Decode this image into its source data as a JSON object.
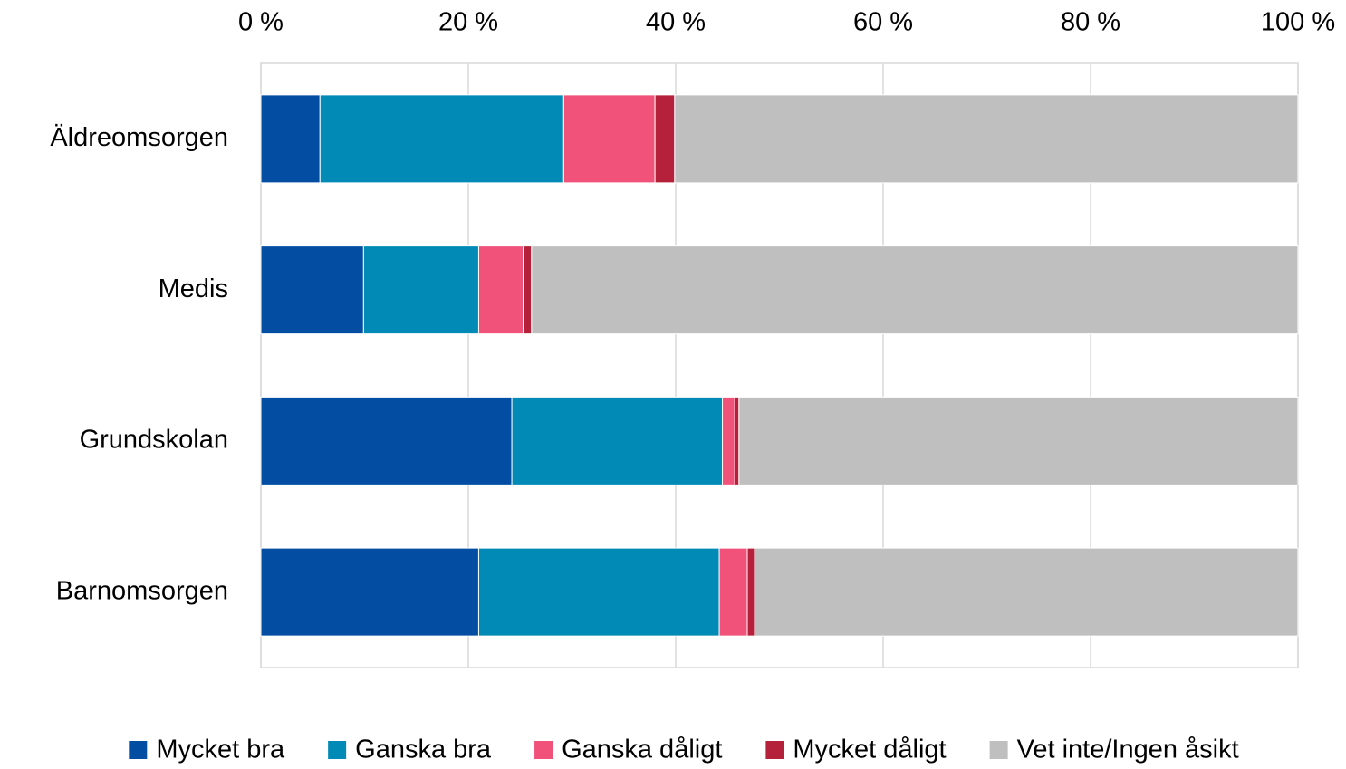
{
  "chart_data": {
    "type": "stacked-bar-horizontal",
    "categories": [
      "Äldreomsorgen",
      "Medis",
      "Grundskolan",
      "Barnomsorgen"
    ],
    "series": [
      {
        "name": "Mycket bra",
        "color": "#034ea2",
        "values": [
          5.7,
          9.9,
          24.2,
          21.0
        ]
      },
      {
        "name": "Ganska bra",
        "color": "#008ab5",
        "values": [
          23.5,
          11.1,
          20.3,
          23.2
        ]
      },
      {
        "name": "Ganska dåligt",
        "color": "#f0527a",
        "values": [
          8.8,
          4.3,
          1.2,
          2.7
        ]
      },
      {
        "name": "Mycket dåligt",
        "color": "#b5203a",
        "values": [
          1.9,
          0.8,
          0.4,
          0.7
        ]
      },
      {
        "name": "Vet inte/Ingen åsikt",
        "color": "#bfbfbf",
        "values": [
          60.1,
          73.9,
          53.9,
          52.4
        ]
      }
    ],
    "xlim": [
      0,
      100
    ],
    "xticks": [
      {
        "value": 0,
        "label": "0 %"
      },
      {
        "value": 20,
        "label": "20 %"
      },
      {
        "value": 40,
        "label": "40 %"
      },
      {
        "value": 60,
        "label": "60 %"
      },
      {
        "value": 80,
        "label": "80 %"
      },
      {
        "value": 100,
        "label": "100 %"
      }
    ],
    "grid": true,
    "legend": "bottom"
  }
}
